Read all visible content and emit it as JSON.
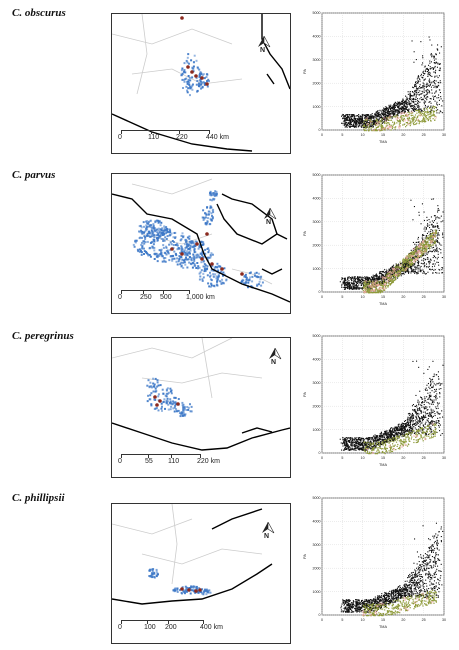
{
  "panels": [
    {
      "species": "C. obscurus",
      "scale": {
        "labels": [
          "0",
          "110",
          "220",
          "440 km"
        ]
      },
      "north": "N"
    },
    {
      "species": "C. parvus",
      "scale": {
        "labels": [
          "0",
          "250",
          "500",
          "1,000 km"
        ]
      },
      "north": "N"
    },
    {
      "species": "C. peregrinus",
      "scale": {
        "labels": [
          "0",
          "55",
          "110",
          "220 km"
        ]
      },
      "north": "N"
    },
    {
      "species": "C. phillipsii",
      "scale": {
        "labels": [
          "0",
          "100",
          "200",
          "400 km"
        ]
      },
      "north": "N"
    }
  ],
  "scatter": {
    "xlabel": "TMA",
    "ylabel": "PA",
    "xticks": [
      "0",
      "5",
      "10",
      "15",
      "20",
      "25",
      "30"
    ],
    "yticks": [
      "0",
      "1000",
      "2000",
      "3000",
      "4000",
      "5000"
    ],
    "xlim": [
      0,
      30
    ],
    "ylim": [
      0,
      5000
    ],
    "colors": {
      "background_points": "#111111",
      "available_points": "#8e9a3a",
      "occurrence_points": "#f2a8a8",
      "grid": "#cfcfcf"
    }
  },
  "map_colors": {
    "coast": "#000000",
    "borders": "#cccccc",
    "suitability": "#3d78c7",
    "occurrence": "#8b2a1f"
  }
}
